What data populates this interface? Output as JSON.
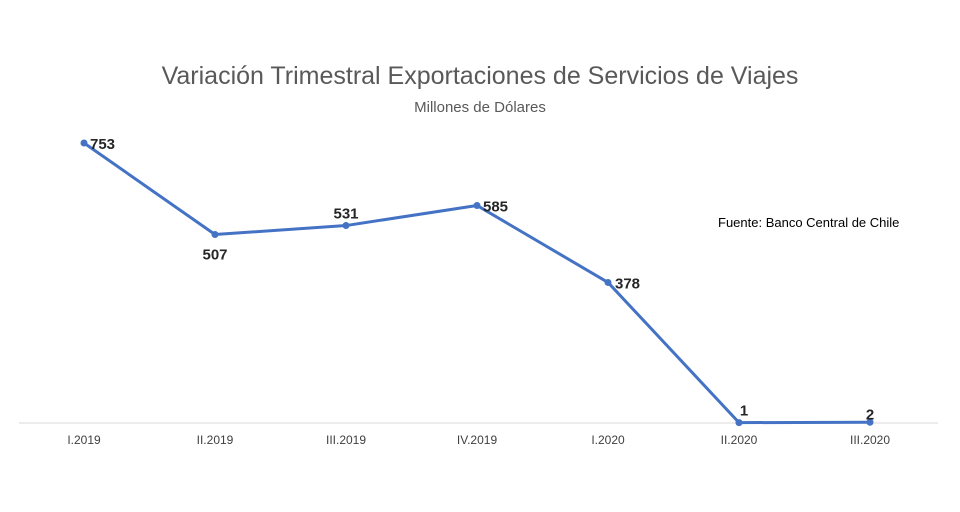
{
  "chart_data": {
    "type": "line",
    "title": "Variación Trimestral Exportaciones de Servicios de Viajes",
    "subtitle": "Millones de Dólares",
    "categories": [
      "I.2019",
      "II.2019",
      "III.2019",
      "IV.2019",
      "I.2020",
      "II.2020",
      "III.2020"
    ],
    "series": [
      {
        "values": [
          753,
          507,
          531,
          585,
          378,
          1,
          2
        ]
      }
    ],
    "data_labels": [
      "753",
      "507",
      "531",
      "585",
      "378",
      "1",
      "2"
    ],
    "ylim": [
      0,
      800
    ],
    "grid": false,
    "annotation": "Fuente: Banco Central de Chile",
    "line_color": "#4472C4"
  }
}
